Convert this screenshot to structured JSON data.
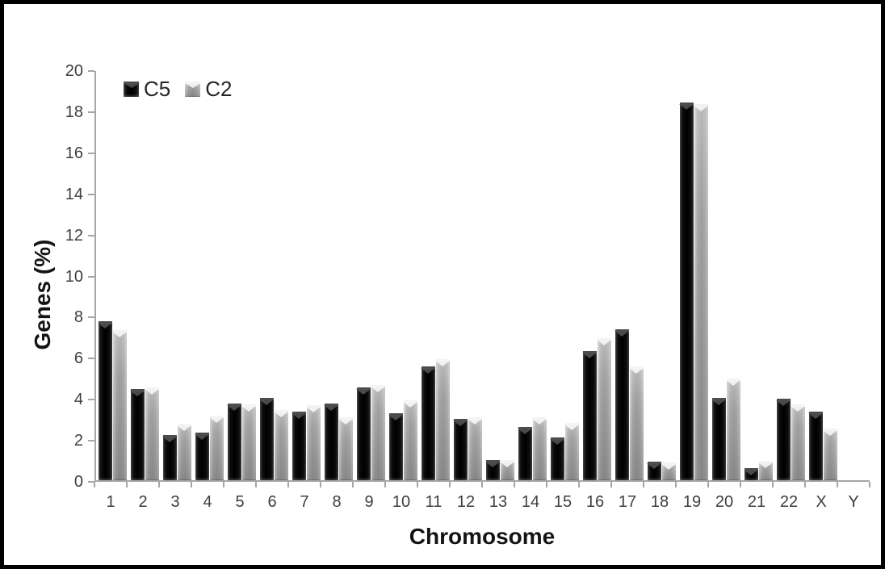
{
  "window": {
    "background": "#ffffff",
    "frame_border_color": "#000000"
  },
  "chart_data": {
    "type": "bar",
    "title": "",
    "xlabel": "Chromosome",
    "ylabel": "Genes (%)",
    "ylim": [
      0,
      20
    ],
    "ytick_step": 2,
    "grid": false,
    "legend_position": "top-left-inside",
    "axis_color": "#a6a6a6",
    "tick_label_color": "#3f3f3f",
    "categories": [
      "1",
      "2",
      "3",
      "4",
      "5",
      "6",
      "7",
      "8",
      "9",
      "10",
      "11",
      "12",
      "13",
      "14",
      "15",
      "16",
      "17",
      "18",
      "19",
      "20",
      "21",
      "22",
      "X",
      "Y"
    ],
    "series": [
      {
        "name": "C5",
        "color": "#0a0a0a",
        "values": [
          7.75,
          4.45,
          2.2,
          2.3,
          3.75,
          4.0,
          3.35,
          3.75,
          4.5,
          3.25,
          5.55,
          3.0,
          1.0,
          2.6,
          2.1,
          6.3,
          7.35,
          0.9,
          18.4,
          4.0,
          0.6,
          3.95,
          3.35,
          0
        ]
      },
      {
        "name": "C2",
        "color": "#a6a6a6",
        "values": [
          7.3,
          4.5,
          2.75,
          3.15,
          3.7,
          3.4,
          3.65,
          3.05,
          4.65,
          3.9,
          5.9,
          3.05,
          1.0,
          3.05,
          2.8,
          6.9,
          5.55,
          0.85,
          18.3,
          4.95,
          0.95,
          3.7,
          2.5,
          0
        ]
      }
    ]
  }
}
